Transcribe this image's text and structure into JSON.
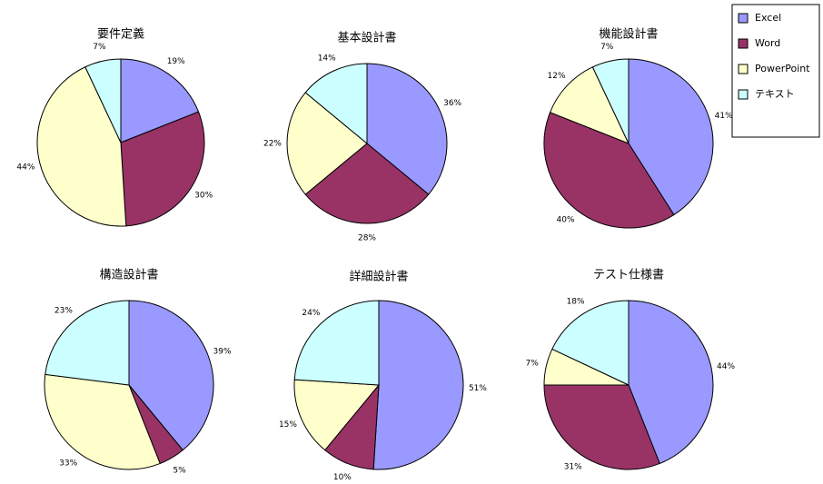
{
  "chart_data": [
    {
      "type": "pie",
      "title": "要件定義",
      "categories": [
        "Excel",
        "Word",
        "PowerPoint",
        "テキスト"
      ],
      "colors": [
        "#9999ff",
        "#993366",
        "#ffffcc",
        "#ccffff"
      ],
      "values": [
        19,
        30,
        44,
        7
      ],
      "value_labels": [
        "19%",
        "30%",
        "44%",
        "7%"
      ]
    },
    {
      "type": "pie",
      "title": "基本設計書",
      "categories": [
        "Excel",
        "Word",
        "PowerPoint",
        "テキスト"
      ],
      "colors": [
        "#9999ff",
        "#993366",
        "#ffffcc",
        "#ccffff"
      ],
      "values": [
        36,
        28,
        22,
        14
      ],
      "value_labels": [
        "36%",
        "28%",
        "22%",
        "14%"
      ]
    },
    {
      "type": "pie",
      "title": "機能設計書",
      "categories": [
        "Excel",
        "Word",
        "PowerPoint",
        "テキスト"
      ],
      "colors": [
        "#9999ff",
        "#993366",
        "#ffffcc",
        "#ccffff"
      ],
      "values": [
        41,
        40,
        12,
        7
      ],
      "value_labels": [
        "41%",
        "40%",
        "12%",
        "7%"
      ]
    },
    {
      "type": "pie",
      "title": "構造設計書",
      "categories": [
        "Excel",
        "Word",
        "PowerPoint",
        "テキスト"
      ],
      "colors": [
        "#9999ff",
        "#993366",
        "#ffffcc",
        "#ccffff"
      ],
      "values": [
        39,
        5,
        33,
        23
      ],
      "value_labels": [
        "39%",
        "5%",
        "33%",
        "23%"
      ]
    },
    {
      "type": "pie",
      "title": "詳細設計書",
      "categories": [
        "Excel",
        "Word",
        "PowerPoint",
        "テキスト"
      ],
      "colors": [
        "#9999ff",
        "#993366",
        "#ffffcc",
        "#ccffff"
      ],
      "values": [
        51,
        10,
        15,
        24
      ],
      "value_labels": [
        "51%",
        "10%",
        "15%",
        "24%"
      ]
    },
    {
      "type": "pie",
      "title": "テスト仕様書",
      "categories": [
        "Excel",
        "Word",
        "PowerPoint",
        "テキスト"
      ],
      "colors": [
        "#9999ff",
        "#993366",
        "#ffffcc",
        "#ccffff"
      ],
      "values": [
        44,
        31,
        7,
        18
      ],
      "value_labels": [
        "44%",
        "31%",
        "7%",
        "18%"
      ]
    }
  ]
}
